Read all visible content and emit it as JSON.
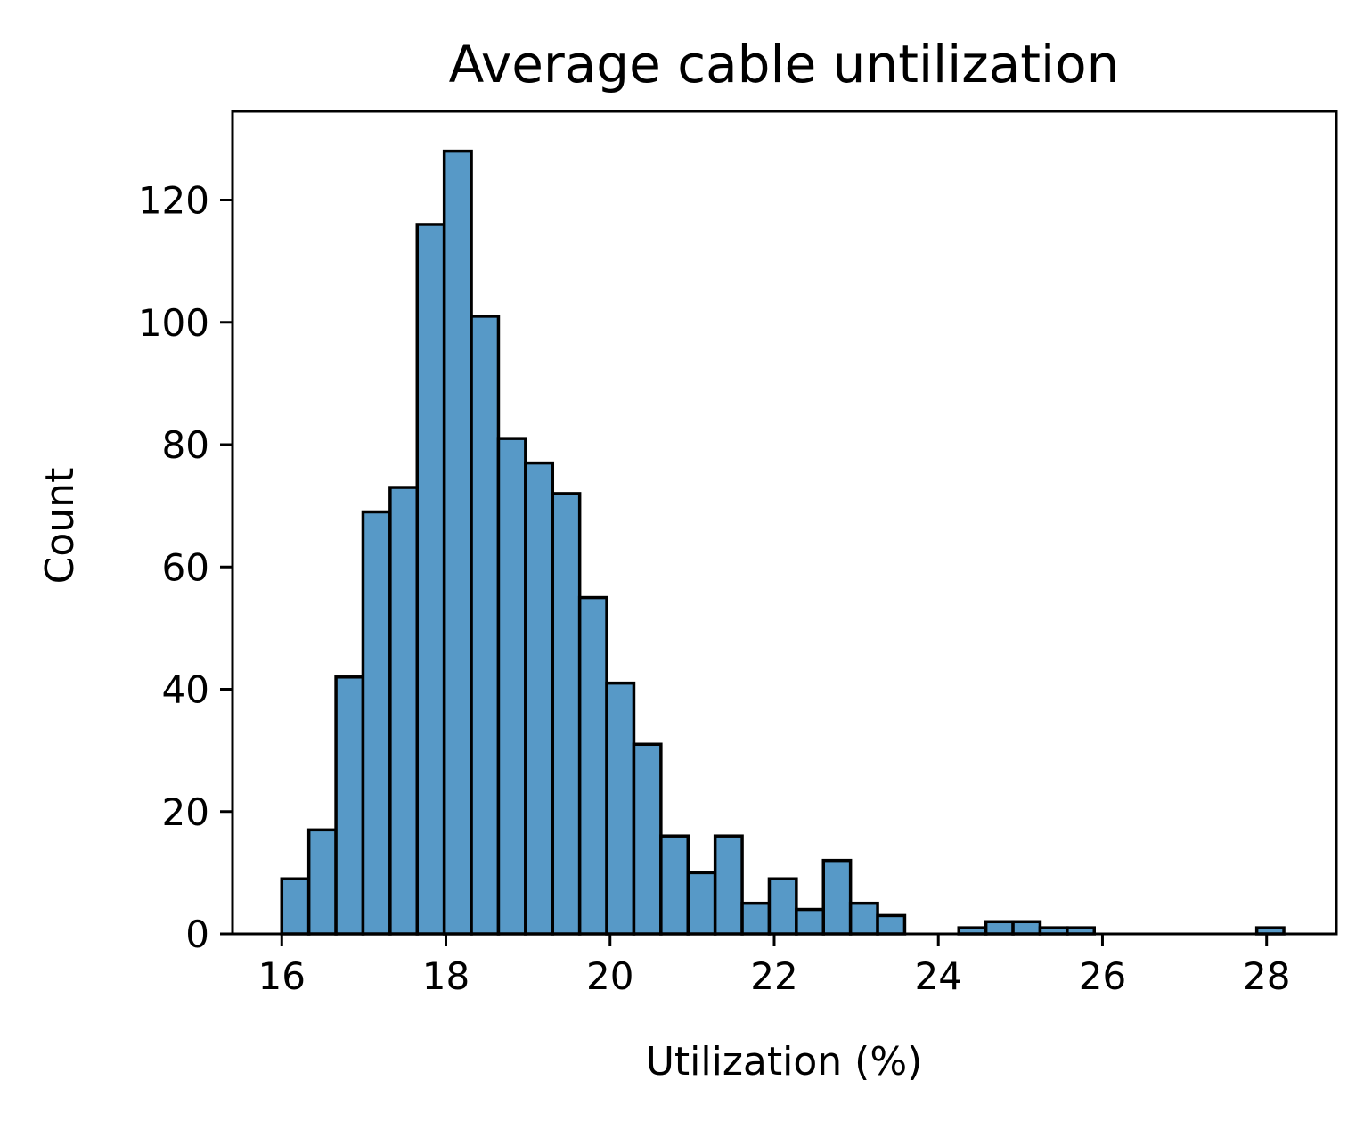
{
  "chart_data": {
    "type": "bar",
    "title": "Average cable untilization",
    "xlabel": "Utilization (%)",
    "ylabel": "Count",
    "xlim": [
      15.4,
      28.85
    ],
    "ylim": [
      0,
      134.5
    ],
    "xticks": [
      16,
      18,
      20,
      22,
      24,
      26,
      28
    ],
    "yticks": [
      0,
      20,
      40,
      60,
      80,
      100,
      120
    ],
    "bar_color": "#5799c7",
    "edge_color": "#000000",
    "grid": false,
    "bins": [
      {
        "x0": 16.0,
        "x1": 16.33,
        "count": 9
      },
      {
        "x0": 16.33,
        "x1": 16.66,
        "count": 17
      },
      {
        "x0": 16.66,
        "x1": 16.99,
        "count": 42
      },
      {
        "x0": 16.99,
        "x1": 17.32,
        "count": 69
      },
      {
        "x0": 17.32,
        "x1": 17.65,
        "count": 73
      },
      {
        "x0": 17.65,
        "x1": 17.98,
        "count": 116
      },
      {
        "x0": 17.98,
        "x1": 18.31,
        "count": 128
      },
      {
        "x0": 18.31,
        "x1": 18.64,
        "count": 101
      },
      {
        "x0": 18.64,
        "x1": 18.97,
        "count": 81
      },
      {
        "x0": 18.97,
        "x1": 19.3,
        "count": 77
      },
      {
        "x0": 19.3,
        "x1": 19.63,
        "count": 72
      },
      {
        "x0": 19.63,
        "x1": 19.96,
        "count": 55
      },
      {
        "x0": 19.96,
        "x1": 20.29,
        "count": 41
      },
      {
        "x0": 20.29,
        "x1": 20.62,
        "count": 31
      },
      {
        "x0": 20.62,
        "x1": 20.95,
        "count": 16
      },
      {
        "x0": 20.95,
        "x1": 21.28,
        "count": 10
      },
      {
        "x0": 21.28,
        "x1": 21.61,
        "count": 16
      },
      {
        "x0": 21.61,
        "x1": 21.94,
        "count": 5
      },
      {
        "x0": 21.94,
        "x1": 22.27,
        "count": 9
      },
      {
        "x0": 22.27,
        "x1": 22.6,
        "count": 4
      },
      {
        "x0": 22.6,
        "x1": 22.93,
        "count": 12
      },
      {
        "x0": 22.93,
        "x1": 23.26,
        "count": 5
      },
      {
        "x0": 23.26,
        "x1": 23.59,
        "count": 3
      },
      {
        "x0": 23.59,
        "x1": 23.92,
        "count": 0
      },
      {
        "x0": 23.92,
        "x1": 24.25,
        "count": 0
      },
      {
        "x0": 24.25,
        "x1": 24.58,
        "count": 1
      },
      {
        "x0": 24.58,
        "x1": 24.91,
        "count": 2
      },
      {
        "x0": 24.91,
        "x1": 25.24,
        "count": 2
      },
      {
        "x0": 25.24,
        "x1": 25.57,
        "count": 1
      },
      {
        "x0": 25.57,
        "x1": 25.9,
        "count": 1
      },
      {
        "x0": 25.9,
        "x1": 26.23,
        "count": 0
      },
      {
        "x0": 26.23,
        "x1": 26.56,
        "count": 0
      },
      {
        "x0": 26.56,
        "x1": 26.89,
        "count": 0
      },
      {
        "x0": 26.89,
        "x1": 27.22,
        "count": 0
      },
      {
        "x0": 27.22,
        "x1": 27.55,
        "count": 0
      },
      {
        "x0": 27.55,
        "x1": 27.88,
        "count": 0
      },
      {
        "x0": 27.88,
        "x1": 28.21,
        "count": 1
      }
    ]
  }
}
